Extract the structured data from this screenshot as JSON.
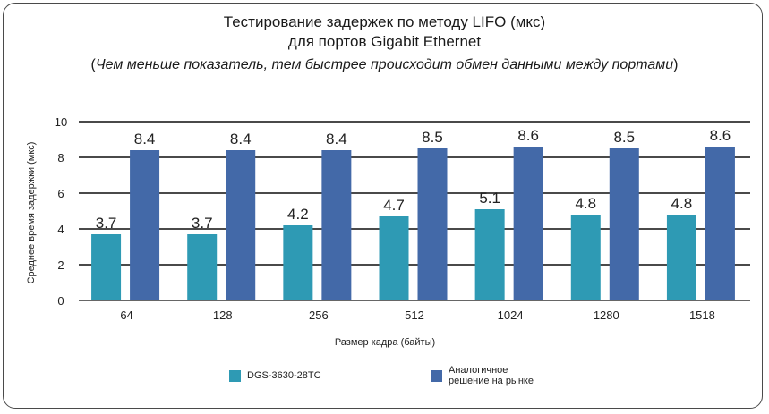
{
  "chart_data": {
    "type": "bar",
    "title": "Тестирование задержек по методу LIFO (мкс)",
    "title_line2": "для портов Gigabit Ethernet",
    "subtitle_open": "(",
    "subtitle_text": "Чем меньше показатель, тем быстрее происходит обмен данными между портами",
    "subtitle_close": ")",
    "xlabel": "Размер кадра (байты)",
    "ylabel": "Среднее время задержки (мкс)",
    "ylim": [
      0,
      10
    ],
    "yticks": [
      "0",
      "2",
      "4",
      "6",
      "8",
      "10"
    ],
    "grid": true,
    "legend_position": "bottom",
    "categories": [
      "64",
      "128",
      "256",
      "512",
      "1024",
      "1280",
      "1518"
    ],
    "series": [
      {
        "name": "DGS-3630-28TC",
        "color": "#2e9ab4",
        "values": [
          3.7,
          3.7,
          4.2,
          4.7,
          5.1,
          4.8,
          4.8
        ],
        "labels": [
          "3.7",
          "3.7",
          "4.2",
          "4.7",
          "5.1",
          "4.8",
          "4.8"
        ]
      },
      {
        "name": "Аналогичное решение на рынке",
        "name_line1": "Аналогичное",
        "name_line2": "решение на рынке",
        "color": "#4369a8",
        "values": [
          8.4,
          8.4,
          8.4,
          8.5,
          8.6,
          8.5,
          8.6
        ],
        "labels": [
          "8.4",
          "8.4",
          "8.4",
          "8.5",
          "8.6",
          "8.5",
          "8.6"
        ]
      }
    ]
  }
}
